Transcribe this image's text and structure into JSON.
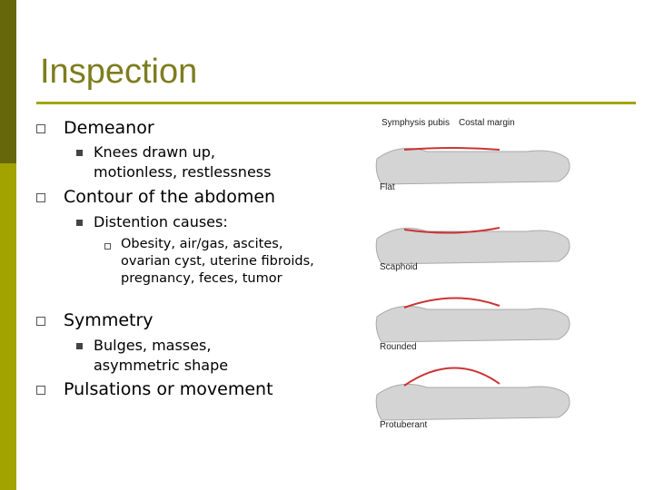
{
  "header": {
    "title": "Inspection"
  },
  "bullets": [
    {
      "text": "Demeanor",
      "children": [
        {
          "text": "Knees drawn up, motionless, restlessness"
        }
      ]
    },
    {
      "text": "Contour of the abdomen",
      "children": [
        {
          "text": "Distention causes:",
          "children": [
            {
              "text": "Obesity, air/gas, ascites, ovarian cyst, uterine fibroids, pregnancy, feces, tumor"
            }
          ]
        }
      ]
    },
    {
      "text": "Symmetry",
      "children": [
        {
          "text": "Bulges, masses, asymmetric shape"
        }
      ]
    },
    {
      "text": "Pulsations or movement"
    }
  ],
  "figure": {
    "labels": [
      "Symphysis pubis",
      "Costal margin"
    ],
    "profiles": [
      "Flat",
      "Scaphoid",
      "Rounded",
      "Protuberant"
    ]
  }
}
